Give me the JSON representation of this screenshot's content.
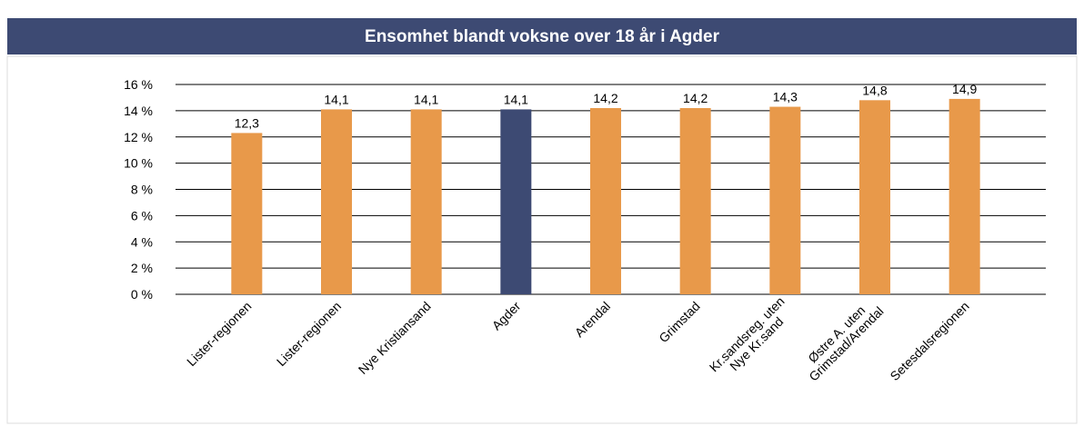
{
  "chart_data": {
    "type": "bar",
    "title": "Ensomhet blandt voksne over 18 år i Agder",
    "categories": [
      "Lister-regionen",
      "Lister-regionen",
      "Nye Kristiansand",
      "Agder",
      "Arendal",
      "Grimstad",
      "Kr.sandsreg. uten\nNye Kr.sand",
      "Østre A. uten\nGrimstad/Arendal",
      "Setesdalsregionen"
    ],
    "values": [
      12.3,
      14.1,
      14.1,
      14.1,
      14.2,
      14.2,
      14.3,
      14.8,
      14.9
    ],
    "value_labels": [
      "12,3",
      "14,1",
      "14,1",
      "14,1",
      "14,2",
      "14,2",
      "14,3",
      "14,8",
      "14,9"
    ],
    "colors": [
      "#e8994a",
      "#e8994a",
      "#e8994a",
      "#3d4a73",
      "#e8994a",
      "#e8994a",
      "#e8994a",
      "#e8994a",
      "#e8994a"
    ],
    "ylim": [
      0,
      16
    ],
    "yticks": [
      {
        "value": 0,
        "label": "0 %"
      },
      {
        "value": 2,
        "label": "2 %"
      },
      {
        "value": 4,
        "label": "4 %"
      },
      {
        "value": 6,
        "label": "6 %"
      },
      {
        "value": 8,
        "label": "8 %"
      },
      {
        "value": 10,
        "label": "10 %"
      },
      {
        "value": 12,
        "label": "12 %"
      },
      {
        "value": 14,
        "label": "14 %"
      },
      {
        "value": 16,
        "label": "16 %"
      }
    ],
    "grid": true
  }
}
